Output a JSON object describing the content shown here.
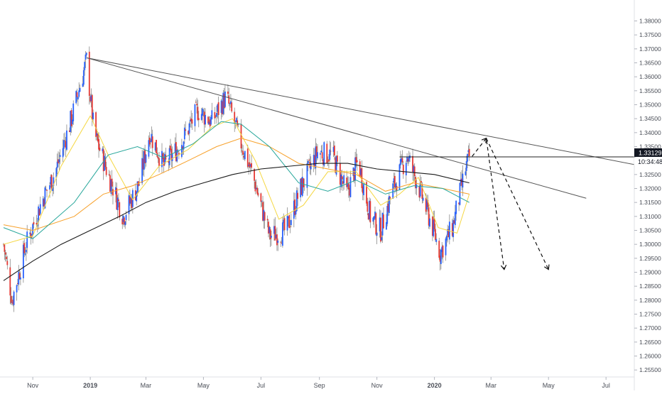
{
  "chart_data": {
    "type": "candlestick",
    "title": "",
    "xlabel": "",
    "ylabel": "",
    "ylim": [
      1.2525,
      1.3875
    ],
    "time_range": [
      "2018-10-01",
      "2020-07-31"
    ],
    "colors": {
      "up": "#2962ff",
      "down": "#e53935",
      "wick": "#7a7a7a",
      "ma_yellow": "#f5d742",
      "ma_orange": "#f7a12b",
      "ma_teal": "#26a69a",
      "ma_black": "#1a1a1a",
      "trendline": "#555555",
      "projection": "#111111"
    },
    "y_ticks": [
      "1.38000",
      "1.37500",
      "1.37000",
      "1.36500",
      "1.36000",
      "1.35500",
      "1.35000",
      "1.34500",
      "1.34000",
      "1.33500",
      "1.33000",
      "1.32500",
      "1.32000",
      "1.31500",
      "1.31000",
      "1.30500",
      "1.30000",
      "1.29500",
      "1.29000",
      "1.28500",
      "1.28000",
      "1.27500",
      "1.27000",
      "1.26500",
      "1.26000",
      "1.25500"
    ],
    "x_ticks": [
      {
        "label": "Nov",
        "date": "2018-11-01"
      },
      {
        "label": "2019",
        "date": "2019-01-01",
        "bold": true
      },
      {
        "label": "Mar",
        "date": "2019-03-01"
      },
      {
        "label": "May",
        "date": "2019-05-01"
      },
      {
        "label": "Jul",
        "date": "2019-07-01"
      },
      {
        "label": "Sep",
        "date": "2019-09-01"
      },
      {
        "label": "Nov",
        "date": "2019-11-01"
      },
      {
        "label": "2020",
        "date": "2020-01-01",
        "bold": true
      },
      {
        "label": "Mar",
        "date": "2020-03-01"
      },
      {
        "label": "May",
        "date": "2020-05-01"
      },
      {
        "label": "Jul",
        "date": "2020-07-01"
      }
    ],
    "candles_start": "2018-10-01",
    "candles_end": "2020-02-07",
    "close_path": [
      {
        "date": "2018-10-01",
        "value": 1.3
      },
      {
        "date": "2018-10-10",
        "value": 1.28
      },
      {
        "date": "2018-10-25",
        "value": 1.3
      },
      {
        "date": "2018-11-10",
        "value": 1.315
      },
      {
        "date": "2018-11-25",
        "value": 1.326
      },
      {
        "date": "2018-12-12",
        "value": 1.345
      },
      {
        "date": "2018-12-28",
        "value": 1.366
      },
      {
        "date": "2019-01-05",
        "value": 1.34
      },
      {
        "date": "2019-01-20",
        "value": 1.325
      },
      {
        "date": "2019-02-05",
        "value": 1.31
      },
      {
        "date": "2019-02-22",
        "value": 1.322
      },
      {
        "date": "2019-03-05",
        "value": 1.34
      },
      {
        "date": "2019-03-20",
        "value": 1.328
      },
      {
        "date": "2019-04-05",
        "value": 1.335
      },
      {
        "date": "2019-04-25",
        "value": 1.348
      },
      {
        "date": "2019-05-10",
        "value": 1.344
      },
      {
        "date": "2019-05-25",
        "value": 1.353
      },
      {
        "date": "2019-06-08",
        "value": 1.338
      },
      {
        "date": "2019-06-22",
        "value": 1.325
      },
      {
        "date": "2019-07-10",
        "value": 1.303
      },
      {
        "date": "2019-07-28",
        "value": 1.305
      },
      {
        "date": "2019-08-12",
        "value": 1.32
      },
      {
        "date": "2019-08-30",
        "value": 1.333
      },
      {
        "date": "2019-09-15",
        "value": 1.332
      },
      {
        "date": "2019-09-30",
        "value": 1.318
      },
      {
        "date": "2019-10-12",
        "value": 1.33
      },
      {
        "date": "2019-10-25",
        "value": 1.31
      },
      {
        "date": "2019-11-05",
        "value": 1.305
      },
      {
        "date": "2019-11-18",
        "value": 1.32
      },
      {
        "date": "2019-12-03",
        "value": 1.332
      },
      {
        "date": "2019-12-18",
        "value": 1.318
      },
      {
        "date": "2019-12-30",
        "value": 1.306
      },
      {
        "date": "2020-01-07",
        "value": 1.297
      },
      {
        "date": "2020-01-20",
        "value": 1.306
      },
      {
        "date": "2020-02-03",
        "value": 1.327
      },
      {
        "date": "2020-02-07",
        "value": 1.3313
      }
    ],
    "moving_averages": [
      {
        "color_key": "ma_yellow",
        "points": [
          {
            "date": "2018-10-01",
            "value": 1.3
          },
          {
            "date": "2018-11-01",
            "value": 1.303
          },
          {
            "date": "2018-12-01",
            "value": 1.328
          },
          {
            "date": "2019-01-01",
            "value": 1.346
          },
          {
            "date": "2019-01-20",
            "value": 1.332
          },
          {
            "date": "2019-02-15",
            "value": 1.316
          },
          {
            "date": "2019-03-15",
            "value": 1.328
          },
          {
            "date": "2019-04-15",
            "value": 1.334
          },
          {
            "date": "2019-05-10",
            "value": 1.342
          },
          {
            "date": "2019-06-01",
            "value": 1.345
          },
          {
            "date": "2019-06-25",
            "value": 1.33
          },
          {
            "date": "2019-07-20",
            "value": 1.309
          },
          {
            "date": "2019-08-15",
            "value": 1.314
          },
          {
            "date": "2019-09-10",
            "value": 1.326
          },
          {
            "date": "2019-10-10",
            "value": 1.326
          },
          {
            "date": "2019-11-05",
            "value": 1.314
          },
          {
            "date": "2019-11-25",
            "value": 1.318
          },
          {
            "date": "2019-12-15",
            "value": 1.324
          },
          {
            "date": "2020-01-05",
            "value": 1.306
          },
          {
            "date": "2020-01-25",
            "value": 1.304
          },
          {
            "date": "2020-02-07",
            "value": 1.318
          }
        ]
      },
      {
        "color_key": "ma_orange",
        "points": [
          {
            "date": "2018-10-01",
            "value": 1.307
          },
          {
            "date": "2018-11-01",
            "value": 1.305
          },
          {
            "date": "2018-12-15",
            "value": 1.31
          },
          {
            "date": "2019-01-15",
            "value": 1.318
          },
          {
            "date": "2019-02-15",
            "value": 1.321
          },
          {
            "date": "2019-03-15",
            "value": 1.325
          },
          {
            "date": "2019-04-15",
            "value": 1.33
          },
          {
            "date": "2019-05-15",
            "value": 1.335
          },
          {
            "date": "2019-06-10",
            "value": 1.338
          },
          {
            "date": "2019-07-10",
            "value": 1.335
          },
          {
            "date": "2019-08-10",
            "value": 1.329
          },
          {
            "date": "2019-09-10",
            "value": 1.327
          },
          {
            "date": "2019-10-10",
            "value": 1.325
          },
          {
            "date": "2019-11-10",
            "value": 1.319
          },
          {
            "date": "2019-12-10",
            "value": 1.322
          },
          {
            "date": "2020-01-10",
            "value": 1.32
          },
          {
            "date": "2020-02-07",
            "value": 1.318
          }
        ]
      },
      {
        "color_key": "ma_teal",
        "points": [
          {
            "date": "2018-10-01",
            "value": 1.306
          },
          {
            "date": "2018-11-01",
            "value": 1.302
          },
          {
            "date": "2018-12-15",
            "value": 1.315
          },
          {
            "date": "2019-01-20",
            "value": 1.332
          },
          {
            "date": "2019-02-20",
            "value": 1.335
          },
          {
            "date": "2019-03-20",
            "value": 1.331
          },
          {
            "date": "2019-04-20",
            "value": 1.336
          },
          {
            "date": "2019-05-20",
            "value": 1.344
          },
          {
            "date": "2019-06-10",
            "value": 1.343
          },
          {
            "date": "2019-07-10",
            "value": 1.335
          },
          {
            "date": "2019-08-10",
            "value": 1.322
          },
          {
            "date": "2019-09-10",
            "value": 1.319
          },
          {
            "date": "2019-10-10",
            "value": 1.323
          },
          {
            "date": "2019-11-10",
            "value": 1.318
          },
          {
            "date": "2019-12-10",
            "value": 1.321
          },
          {
            "date": "2020-01-10",
            "value": 1.32
          },
          {
            "date": "2020-02-07",
            "value": 1.315
          }
        ]
      },
      {
        "color_key": "ma_black",
        "points": [
          {
            "date": "2018-10-01",
            "value": 1.287
          },
          {
            "date": "2018-11-01",
            "value": 1.294
          },
          {
            "date": "2018-12-01",
            "value": 1.3
          },
          {
            "date": "2019-01-01",
            "value": 1.305
          },
          {
            "date": "2019-02-01",
            "value": 1.31
          },
          {
            "date": "2019-03-01",
            "value": 1.315
          },
          {
            "date": "2019-04-01",
            "value": 1.319
          },
          {
            "date": "2019-05-01",
            "value": 1.322
          },
          {
            "date": "2019-06-01",
            "value": 1.325
          },
          {
            "date": "2019-07-01",
            "value": 1.327
          },
          {
            "date": "2019-08-01",
            "value": 1.328
          },
          {
            "date": "2019-09-01",
            "value": 1.329
          },
          {
            "date": "2019-10-01",
            "value": 1.329
          },
          {
            "date": "2019-11-01",
            "value": 1.327
          },
          {
            "date": "2019-12-01",
            "value": 1.326
          },
          {
            "date": "2020-01-01",
            "value": 1.325
          },
          {
            "date": "2020-02-07",
            "value": 1.322
          }
        ]
      }
    ],
    "trendlines": [
      {
        "from": {
          "date": "2018-12-28",
          "value": 1.3668
        },
        "to": {
          "date": "2020-08-01",
          "value": 1.3285
        }
      },
      {
        "from": {
          "date": "2018-12-28",
          "value": 1.3668
        },
        "to": {
          "date": "2020-06-10",
          "value": 1.3165
        }
      },
      {
        "from": {
          "date": "2019-11-25",
          "value": 1.3313
        },
        "to": {
          "date": "2020-08-01",
          "value": 1.3313
        }
      }
    ],
    "projections": [
      {
        "points": [
          {
            "date": "2020-02-10",
            "value": 1.3315
          },
          {
            "date": "2020-02-25",
            "value": 1.338
          },
          {
            "date": "2020-03-15",
            "value": 1.291
          }
        ]
      },
      {
        "points": [
          {
            "date": "2020-02-25",
            "value": 1.338
          },
          {
            "date": "2020-05-01",
            "value": 1.291
          }
        ]
      }
    ],
    "current_price": {
      "value": 1.33129,
      "label": "1.33129",
      "countdown": "10:34:48"
    }
  }
}
